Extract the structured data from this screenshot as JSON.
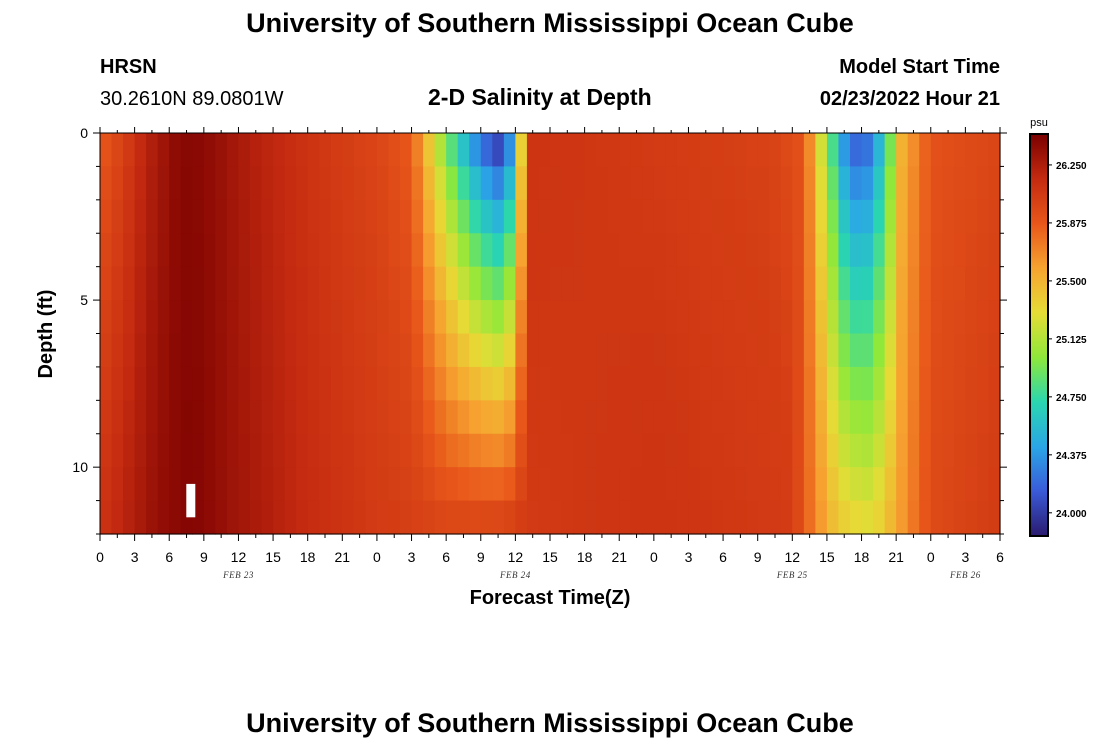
{
  "header": {
    "title": "University of Southern Mississippi Ocean Cube",
    "station": "HRSN",
    "coordinates": "30.2610N  89.0801W",
    "subtitle": "2-D Salinity at Depth",
    "model_start_label": "Model Start Time",
    "model_start_value": "02/23/2022 Hour 21"
  },
  "footer": {
    "title": "University of Southern Mississippi Ocean Cube"
  },
  "chart_data": {
    "type": "heatmap",
    "title": "2-D Salinity at Depth",
    "xlabel": "Forecast Time(Z)",
    "ylabel": "Depth (ft)",
    "x_range_hours": [
      0,
      78
    ],
    "x_ticks": [
      "0",
      "3",
      "6",
      "9",
      "12",
      "15",
      "18",
      "21",
      "0",
      "3",
      "6",
      "9",
      "12",
      "15",
      "18",
      "21",
      "0",
      "3",
      "6",
      "9",
      "12",
      "15",
      "18",
      "21",
      "0",
      "3",
      "6"
    ],
    "day_labels": [
      {
        "label": "FEB 23",
        "hour": 12
      },
      {
        "label": "FEB 24",
        "hour": 36
      },
      {
        "label": "FEB 25",
        "hour": 60
      },
      {
        "label": "FEB 26",
        "hour": 75
      }
    ],
    "y_range_ft": [
      0,
      12
    ],
    "y_ticks": [
      0,
      5,
      10
    ],
    "colorbar": {
      "unit": "psu",
      "min": 23.85,
      "max": 26.45,
      "tick_values": [
        24.0,
        24.375,
        24.75,
        25.125,
        25.5,
        25.875,
        26.25
      ],
      "tick_labels": [
        "24.000",
        "24.375",
        "24.750",
        "25.125",
        "25.500",
        "25.875",
        "26.250"
      ],
      "colors": [
        "#2a1a6e",
        "#3a5ad8",
        "#2aa6e6",
        "#2ad6b0",
        "#8ee83a",
        "#e6dc36",
        "#f7a230",
        "#e8561a",
        "#c42a10",
        "#7a0000"
      ]
    },
    "surface_salinity_psu": [
      {
        "hour": 0,
        "value": 25.85
      },
      {
        "hour": 2,
        "value": 26.0
      },
      {
        "hour": 4,
        "value": 26.2
      },
      {
        "hour": 7,
        "value": 26.4
      },
      {
        "hour": 9,
        "value": 26.38
      },
      {
        "hour": 14,
        "value": 26.2
      },
      {
        "hour": 20,
        "value": 26.05
      },
      {
        "hour": 24,
        "value": 25.98
      },
      {
        "hour": 27,
        "value": 25.85
      },
      {
        "hour": 29,
        "value": 25.2
      },
      {
        "hour": 31,
        "value": 24.6
      },
      {
        "hour": 33,
        "value": 24.1
      },
      {
        "hour": 34.5,
        "value": 23.9
      },
      {
        "hour": 35.5,
        "value": 24.2
      },
      {
        "hour": 36.5,
        "value": 25.3
      },
      {
        "hour": 37.5,
        "value": 26.1
      },
      {
        "hour": 48,
        "value": 26.05
      },
      {
        "hour": 58,
        "value": 26.0
      },
      {
        "hour": 61,
        "value": 25.9
      },
      {
        "hour": 62.5,
        "value": 25.2
      },
      {
        "hour": 64.5,
        "value": 24.3
      },
      {
        "hour": 66,
        "value": 24.0
      },
      {
        "hour": 68,
        "value": 24.6
      },
      {
        "hour": 69.5,
        "value": 25.5
      },
      {
        "hour": 72,
        "value": 25.9
      },
      {
        "hour": 78,
        "value": 25.98
      }
    ],
    "bottom_salinity_psu": [
      {
        "hour": 0,
        "value": 26.1
      },
      {
        "hour": 5,
        "value": 26.35
      },
      {
        "hour": 8,
        "value": 26.42
      },
      {
        "hour": 12,
        "value": 26.3
      },
      {
        "hour": 18,
        "value": 26.15
      },
      {
        "hour": 24,
        "value": 26.05
      },
      {
        "hour": 30,
        "value": 26.0
      },
      {
        "hour": 36,
        "value": 26.05
      },
      {
        "hour": 48,
        "value": 26.1
      },
      {
        "hour": 60,
        "value": 26.05
      },
      {
        "hour": 62,
        "value": 25.7
      },
      {
        "hour": 64,
        "value": 25.4
      },
      {
        "hour": 67,
        "value": 25.3
      },
      {
        "hour": 69,
        "value": 25.55
      },
      {
        "hour": 72,
        "value": 25.95
      },
      {
        "hour": 78,
        "value": 26.05
      }
    ],
    "white_marker": {
      "hour": 8,
      "depth_ft_top": 10.5,
      "depth_ft_bottom": 11.5,
      "color": "#ffffff"
    }
  }
}
